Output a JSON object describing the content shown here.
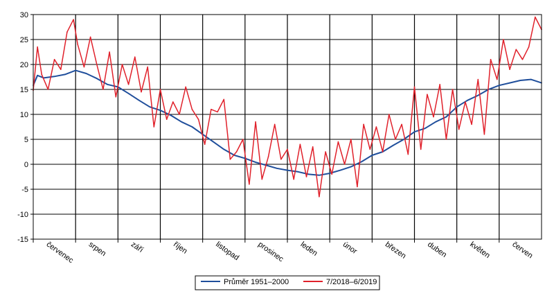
{
  "chart_data": {
    "type": "line",
    "title": "",
    "xlabel": "",
    "ylabel": "",
    "ylim": [
      -15,
      30
    ],
    "yticks": [
      -15,
      -10,
      -5,
      0,
      5,
      10,
      15,
      20,
      25,
      30
    ],
    "categories": [
      "červenec",
      "srpen",
      "září",
      "říjen",
      "listopad",
      "prosinec",
      "leden",
      "únor",
      "březen",
      "duben",
      "květen",
      "červen"
    ],
    "grid": "vertical-and-horizontal",
    "legend_position": "bottom",
    "x_unit": "month_fraction",
    "series": [
      {
        "name": "Průměr 1951–2000",
        "color": "#1f4e9b",
        "x": [
          0.0,
          0.1,
          0.25,
          0.5,
          0.75,
          1.0,
          1.25,
          1.5,
          1.75,
          2.0,
          2.25,
          2.5,
          2.75,
          3.0,
          3.25,
          3.5,
          3.75,
          4.0,
          4.25,
          4.5,
          4.75,
          5.0,
          5.25,
          5.5,
          5.75,
          6.0,
          6.25,
          6.5,
          6.75,
          7.0,
          7.25,
          7.5,
          7.75,
          8.0,
          8.25,
          8.5,
          8.75,
          9.0,
          9.25,
          9.5,
          9.75,
          10.0,
          10.25,
          10.5,
          10.75,
          11.0,
          11.25,
          11.5,
          11.75,
          12.0
        ],
        "y": [
          15.8,
          17.8,
          17.3,
          17.6,
          18.0,
          18.8,
          18.2,
          17.2,
          16.0,
          15.5,
          14.2,
          12.8,
          11.5,
          10.8,
          9.8,
          8.5,
          7.5,
          6.0,
          4.5,
          3.0,
          1.8,
          1.2,
          0.4,
          -0.2,
          -0.8,
          -1.2,
          -1.5,
          -2.0,
          -2.2,
          -1.8,
          -1.2,
          -0.5,
          0.5,
          1.8,
          2.5,
          3.8,
          5.0,
          6.5,
          7.2,
          8.5,
          9.5,
          11.5,
          12.8,
          13.8,
          15.0,
          15.8,
          16.3,
          16.8,
          17.0,
          16.3
        ]
      },
      {
        "name": "7/2018–6/2019",
        "color": "#e0202a",
        "x": [
          0.0,
          0.1,
          0.2,
          0.35,
          0.5,
          0.65,
          0.8,
          0.95,
          1.05,
          1.2,
          1.35,
          1.5,
          1.65,
          1.8,
          1.95,
          2.1,
          2.25,
          2.4,
          2.55,
          2.7,
          2.85,
          3.0,
          3.15,
          3.3,
          3.45,
          3.6,
          3.75,
          3.9,
          4.05,
          4.2,
          4.35,
          4.5,
          4.65,
          4.8,
          4.95,
          5.1,
          5.25,
          5.4,
          5.55,
          5.7,
          5.85,
          6.0,
          6.15,
          6.3,
          6.45,
          6.6,
          6.75,
          6.9,
          7.05,
          7.2,
          7.35,
          7.5,
          7.65,
          7.8,
          7.95,
          8.1,
          8.25,
          8.4,
          8.55,
          8.7,
          8.85,
          9.0,
          9.15,
          9.3,
          9.45,
          9.6,
          9.75,
          9.9,
          10.05,
          10.2,
          10.35,
          10.5,
          10.65,
          10.8,
          10.95,
          11.1,
          11.25,
          11.4,
          11.55,
          11.7,
          11.85,
          12.0
        ],
        "y": [
          14.8,
          23.5,
          18.0,
          15.0,
          21.0,
          19.0,
          26.5,
          29.0,
          24.0,
          19.5,
          25.5,
          20.0,
          15.0,
          22.5,
          13.5,
          20.0,
          16.0,
          21.5,
          14.5,
          19.5,
          7.5,
          15.0,
          9.0,
          12.5,
          10.0,
          15.5,
          11.0,
          9.0,
          4.0,
          11.0,
          10.5,
          13.0,
          1.0,
          2.5,
          5.0,
          -4.0,
          8.5,
          -3.0,
          1.5,
          8.0,
          1.0,
          3.0,
          -3.0,
          4.0,
          -2.5,
          3.5,
          -6.5,
          2.5,
          -2.0,
          4.5,
          0.0,
          5.0,
          -4.5,
          8.0,
          3.0,
          7.5,
          2.5,
          10.0,
          5.0,
          8.0,
          2.0,
          15.5,
          3.0,
          14.0,
          9.5,
          16.0,
          5.0,
          15.0,
          7.0,
          12.5,
          8.0,
          17.0,
          6.0,
          21.0,
          17.0,
          25.0,
          19.0,
          23.0,
          21.0,
          23.5,
          29.5,
          27.0
        ]
      }
    ]
  }
}
